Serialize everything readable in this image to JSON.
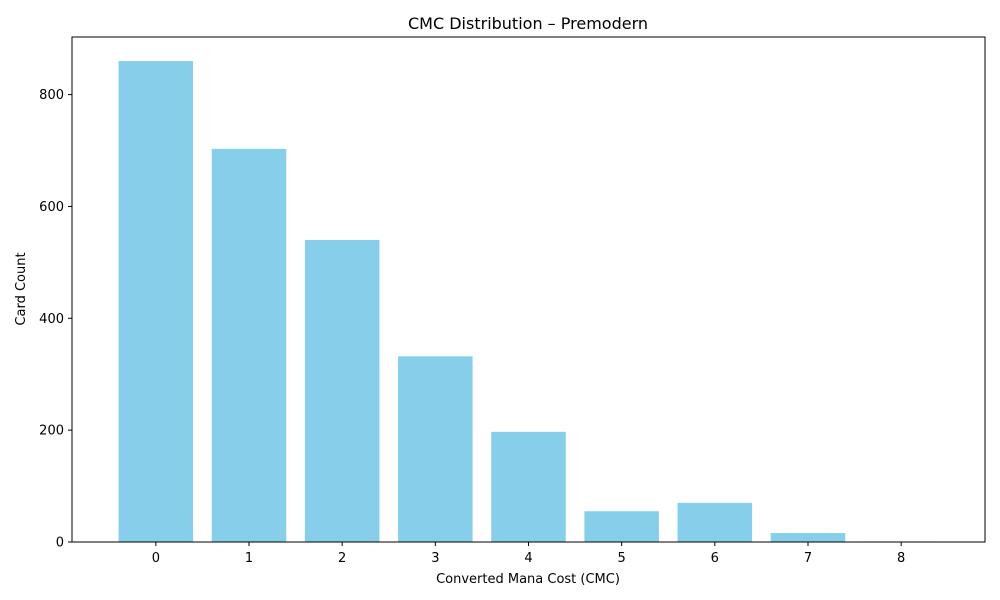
{
  "chart_data": {
    "type": "bar",
    "title": "CMC Distribution – Premodern",
    "xlabel": "Converted Mana Cost (CMC)",
    "ylabel": "Card Count",
    "categories": [
      "0",
      "1",
      "2",
      "3",
      "4",
      "5",
      "6",
      "7",
      "8"
    ],
    "values": [
      860,
      703,
      540,
      332,
      197,
      55,
      70,
      16,
      1
    ],
    "ylim": [
      0,
      903
    ],
    "yticks": [
      0,
      200,
      400,
      600,
      800
    ],
    "bar_color": "#87ceeb",
    "grid": false,
    "legend": "none"
  }
}
